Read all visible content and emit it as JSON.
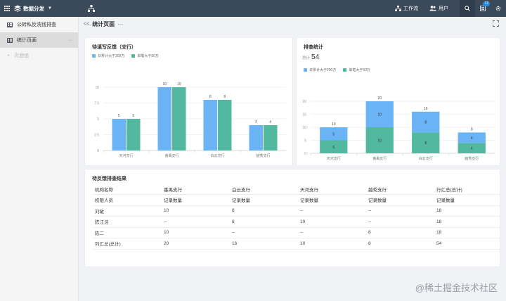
{
  "topbar": {
    "app_name": "数据分发",
    "nav": [
      {
        "label": "工作流",
        "icon": "workflow-icon"
      },
      {
        "label": "用户",
        "icon": "users-icon"
      }
    ],
    "notification_count": "12"
  },
  "sidebar": {
    "items": [
      {
        "label": "公转私反洗钱排查",
        "icon": "grid-doc-icon",
        "active": false
      },
      {
        "label": "统计页面",
        "icon": "grid-doc-icon",
        "active": true,
        "more": "···"
      }
    ],
    "add_label": "页面组"
  },
  "page": {
    "collapse_glyph": "<<",
    "title": "统计页面",
    "title_more": "···"
  },
  "colors": {
    "blue": "#6ab3f5",
    "green": "#52b8a0"
  },
  "charts": {
    "left": {
      "title": "待填写反馈（支行）",
      "legend": [
        "日累计大于200万",
        "单笔大于50万"
      ]
    },
    "right": {
      "title": "排查统计",
      "total_label": "总计",
      "total_value": "54",
      "legend": [
        "日累计大于200万",
        "单笔大于50万"
      ]
    }
  },
  "chart_data": [
    {
      "type": "bar",
      "title": "待填写反馈（支行）",
      "categories": [
        "天河支行",
        "番禺支行",
        "白云支行",
        "越秀支行"
      ],
      "series": [
        {
          "name": "日累计大于200万",
          "values": [
            5,
            10,
            8,
            4
          ]
        },
        {
          "name": "单笔大于50万",
          "values": [
            5,
            10,
            8,
            4
          ]
        }
      ],
      "yticks": [
        "0",
        "2.5",
        "5",
        "7.5",
        "10"
      ],
      "ylim": [
        0,
        10
      ],
      "stacked": false,
      "legend": "top-left",
      "grid": true
    },
    {
      "type": "bar",
      "title": "排查统计",
      "categories": [
        "天河支行",
        "番禺支行",
        "白云支行",
        "越秀支行"
      ],
      "series": [
        {
          "name": "日累计大于200万",
          "values": [
            5,
            10,
            8,
            4
          ]
        },
        {
          "name": "单笔大于50万",
          "values": [
            5,
            10,
            8,
            4
          ]
        }
      ],
      "totals": [
        10,
        20,
        16,
        8
      ],
      "yticks": [
        "0",
        "5",
        "10",
        "15",
        "20"
      ],
      "ylim": [
        0,
        20
      ],
      "stacked": true,
      "legend": "top-left",
      "grid": true
    }
  ],
  "table": {
    "title": "待反馈排查结果",
    "header1": [
      "机构名称",
      "番禺支行",
      "白云支行",
      "天河支行",
      "越秀支行",
      "行汇总(总计)"
    ],
    "header2": [
      "权限人员",
      "记录数量",
      "记录数量",
      "记录数量",
      "记录数量",
      "记录数量"
    ],
    "rows": [
      [
        "刘敏",
        "10",
        "8",
        "--",
        "--",
        "18"
      ],
      [
        "陈江浩",
        "--",
        "8",
        "10",
        "--",
        "18"
      ],
      [
        "陈二",
        "10",
        "--",
        "--",
        "8",
        "18"
      ],
      [
        "列汇总(总计)",
        "20",
        "16",
        "10",
        "8",
        "54"
      ]
    ]
  },
  "watermark": "@稀土掘金技术社区"
}
